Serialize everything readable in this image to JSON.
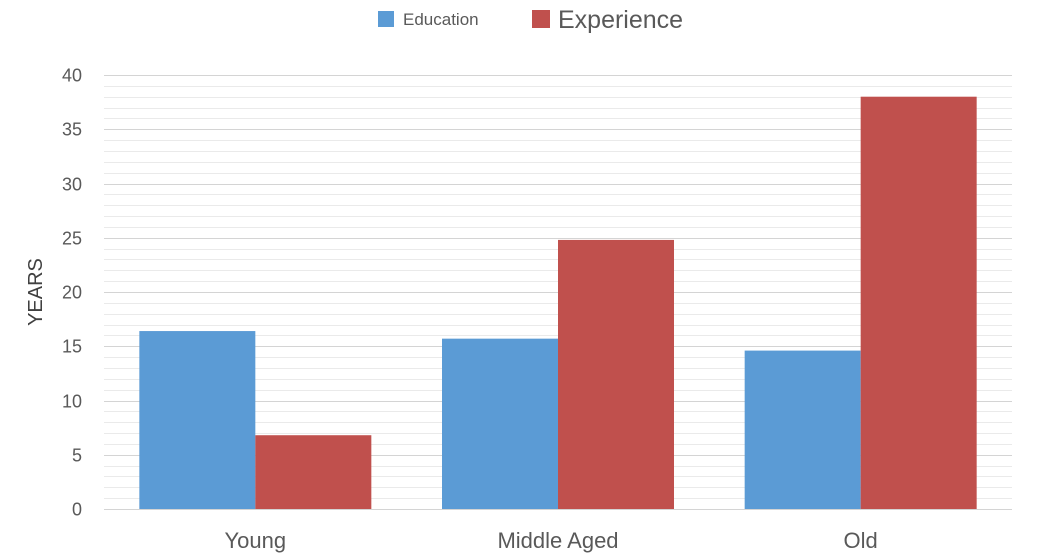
{
  "chart_data": {
    "type": "bar",
    "title": "",
    "xlabel": "",
    "ylabel": "YEARS",
    "ylim": [
      0,
      40
    ],
    "yticks": [
      0,
      5,
      10,
      15,
      20,
      25,
      30,
      35,
      40
    ],
    "minor_grid_step": 1,
    "grid": true,
    "legend_position": "top-center",
    "categories": [
      "Young",
      "Middle Aged",
      "Old"
    ],
    "series": [
      {
        "name": "Education",
        "color": "#5B9BD5",
        "values": [
          16.4,
          15.7,
          14.6
        ]
      },
      {
        "name": "Experience",
        "color": "#C0504D",
        "values": [
          6.8,
          24.8,
          38.0
        ]
      }
    ]
  }
}
